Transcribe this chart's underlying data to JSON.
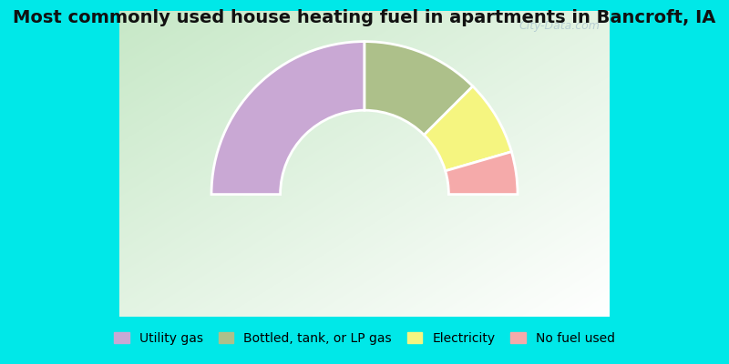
{
  "title": "Most commonly used house heating fuel in apartments in Bancroft, IA",
  "segments": [
    {
      "label": "Utility gas",
      "value": 50,
      "color": "#c9a8d4"
    },
    {
      "label": "Bottled, tank, or LP gas",
      "value": 25,
      "color": "#adc08a"
    },
    {
      "label": "Electricity",
      "value": 16,
      "color": "#f5f580"
    },
    {
      "label": "No fuel used",
      "value": 9,
      "color": "#f5aaaa"
    }
  ],
  "background_color": "#00e8e8",
  "chart_bg_color_tl": [
    0.78,
    0.91,
    0.78
  ],
  "chart_bg_color_br": [
    1.0,
    1.0,
    1.0
  ],
  "title_fontsize": 14,
  "legend_fontsize": 10,
  "donut_outer": 1.0,
  "donut_inner": 0.55,
  "watermark": "City-Data.com"
}
